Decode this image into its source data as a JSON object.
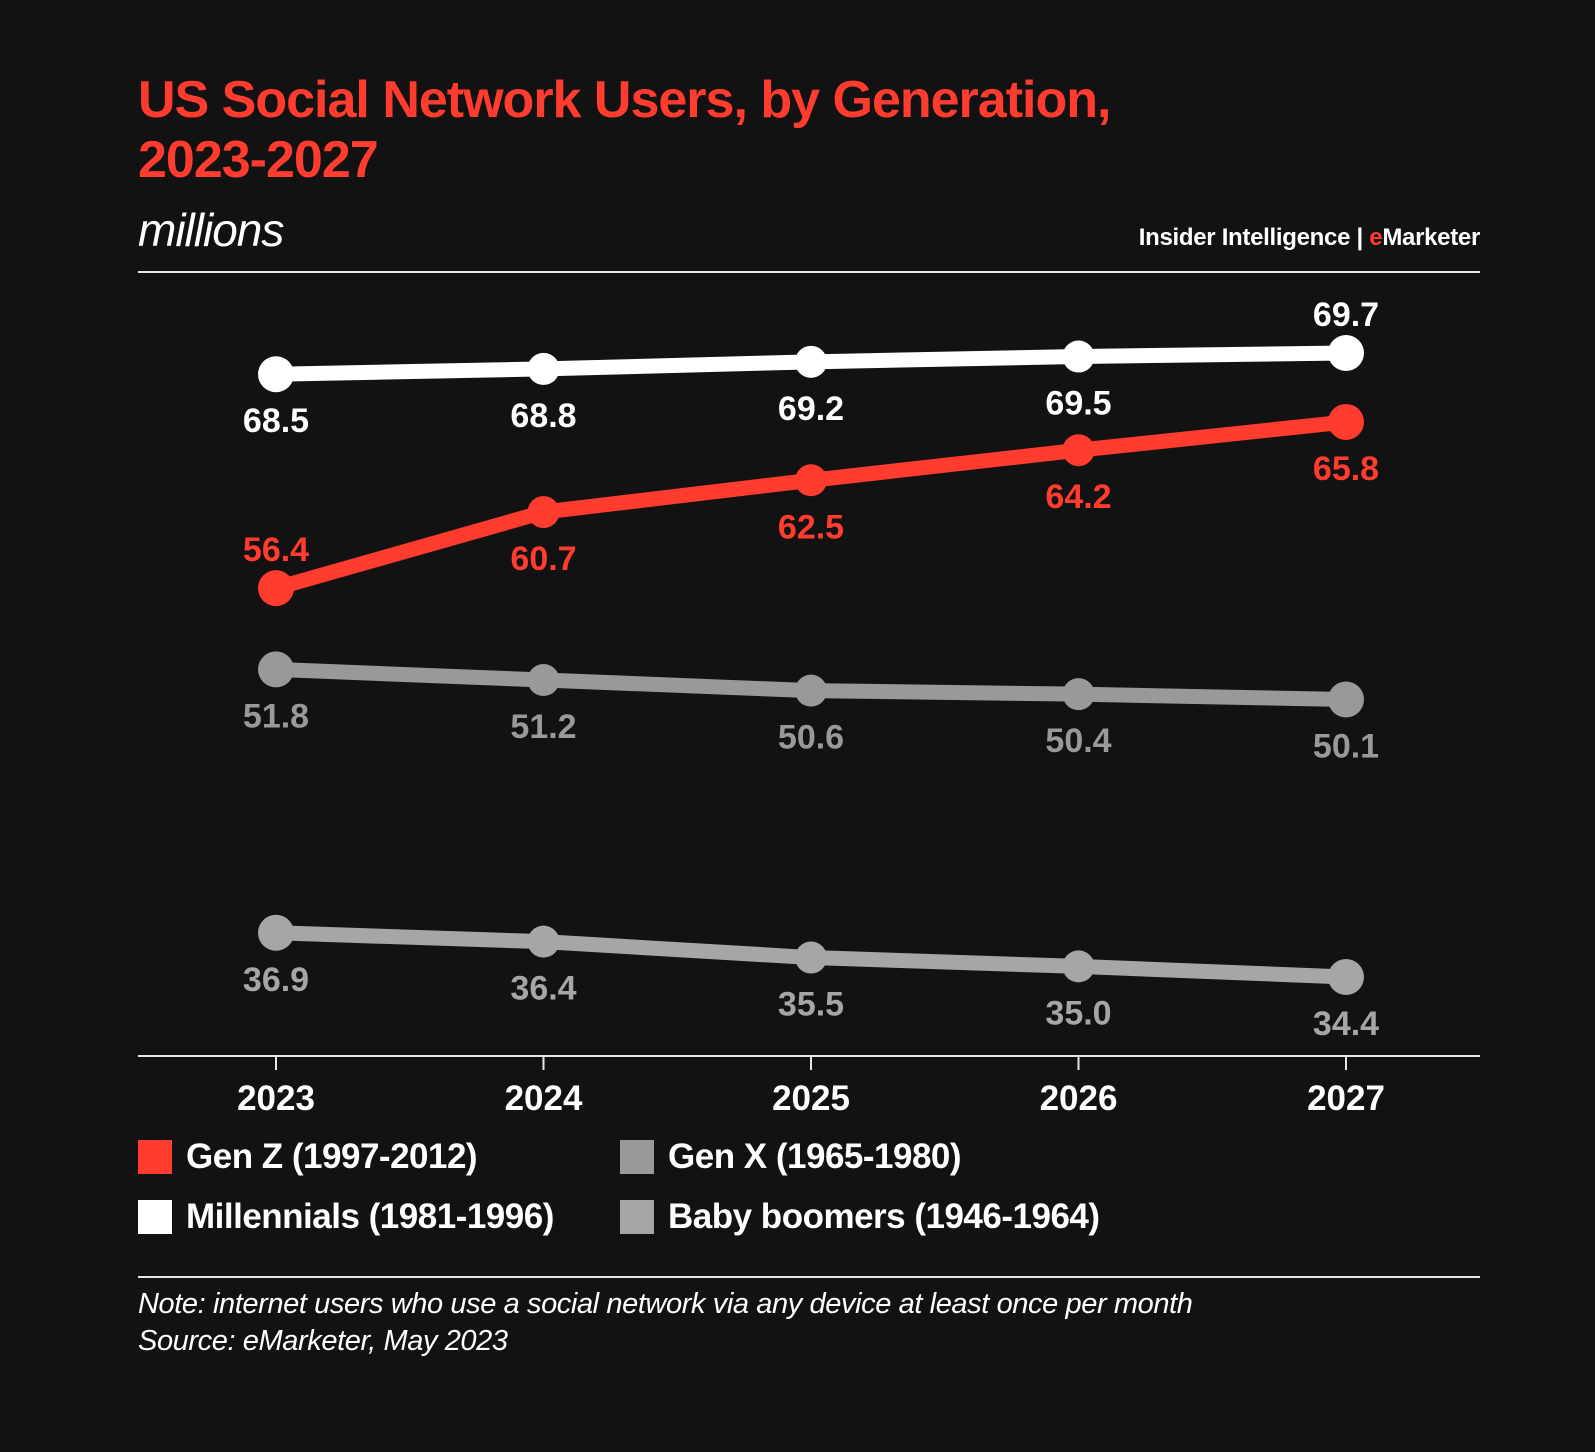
{
  "header": {
    "title_lines": [
      "US Social Network Users, by Generation,",
      "2023-2027"
    ],
    "subtitle": "millions",
    "brand_left": "Insider Intelligence | ",
    "brand_accent": "e",
    "brand_right": "Marketer"
  },
  "colors": {
    "background": "#121212",
    "accent": "#ff3c2e",
    "text": "#ffffff"
  },
  "chart_data": {
    "type": "line",
    "title": "US Social Network Users, by Generation, 2023-2027",
    "subtitle": "millions",
    "xlabel": "",
    "ylabel": "millions",
    "x": [
      "2023",
      "2024",
      "2025",
      "2026",
      "2027"
    ],
    "grid": false,
    "legend_position": "bottom",
    "series": [
      {
        "name": "Gen Z (1997-2012)",
        "color": "#ff3c2e",
        "values": [
          56.4,
          60.7,
          62.5,
          64.2,
          65.8
        ],
        "label_positions": [
          "above",
          "below",
          "below",
          "below",
          "below"
        ]
      },
      {
        "name": "Millennials (1981-1996)",
        "color": "#ffffff",
        "values": [
          68.5,
          68.8,
          69.2,
          69.5,
          69.7
        ],
        "label_positions": [
          "below",
          "below",
          "below",
          "below",
          "above"
        ]
      },
      {
        "name": "Gen X (1965-1980)",
        "color": "#999999",
        "values": [
          51.8,
          51.2,
          50.6,
          50.4,
          50.1
        ],
        "label_positions": [
          "below",
          "below",
          "below",
          "below",
          "below"
        ]
      },
      {
        "name": "Baby boomers (1946-1964)",
        "color": "#a6a6a6",
        "values": [
          36.9,
          36.4,
          35.5,
          35.0,
          34.4
        ],
        "label_positions": [
          "below",
          "below",
          "below",
          "below",
          "below"
        ]
      }
    ]
  },
  "legend": {
    "items": [
      {
        "label": "Gen Z (1997-2012)",
        "color": "#ff3c2e"
      },
      {
        "label": "Gen X (1965-1980)",
        "color": "#999999"
      },
      {
        "label": "Millennials (1981-1996)",
        "color": "#ffffff"
      },
      {
        "label": "Baby boomers (1946-1964)",
        "color": "#a6a6a6"
      }
    ]
  },
  "footer": {
    "note": "Note: internet users who use a social network via any device at least once per month",
    "source": "Source: eMarketer, May 2023"
  }
}
